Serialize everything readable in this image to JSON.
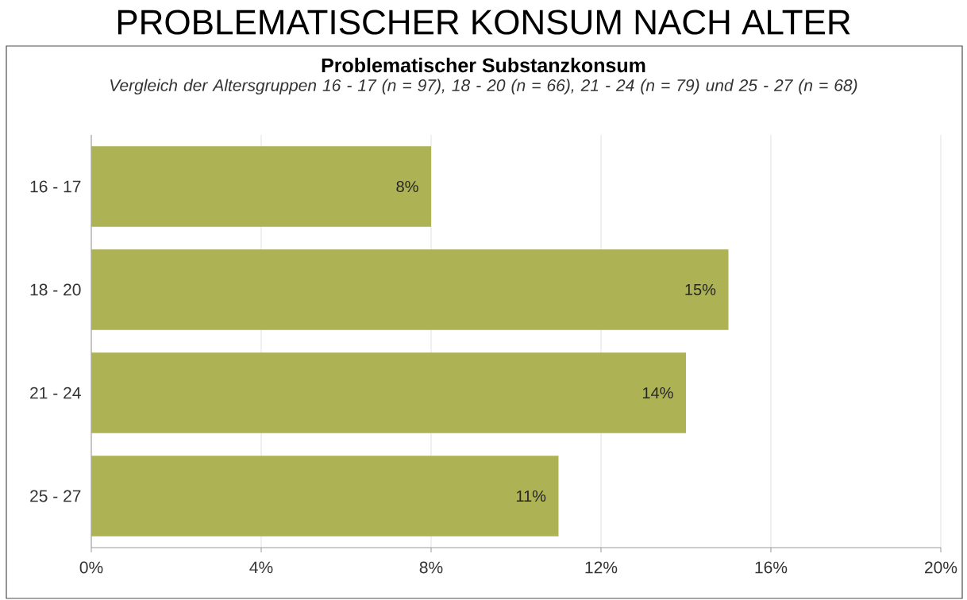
{
  "chart_data": {
    "type": "bar",
    "orientation": "horizontal",
    "title": "PROBLEMATISCHER KONSUM NACH ALTER",
    "subtitle": "Problematischer Substanzkonsum",
    "annotations": [
      "Vergleich der Altersgruppen 16 - 17 (n = 97), 18 - 20 (n = 66), 21 - 24 (n = 79) und 25 - 27 (n = 68)"
    ],
    "categories": [
      "16 - 17",
      "18 - 20",
      "21 - 24",
      "25 - 27"
    ],
    "values": [
      8,
      15,
      14,
      11
    ],
    "value_labels": [
      "8%",
      "15%",
      "14%",
      "11%"
    ],
    "color": "#adb255",
    "xlim": [
      0,
      20
    ],
    "xticks": [
      {
        "value": 0,
        "label": "0%"
      },
      {
        "value": 4,
        "label": "4%"
      },
      {
        "value": 8,
        "label": "8%"
      },
      {
        "value": 12,
        "label": "12%"
      },
      {
        "value": 16,
        "label": "16%"
      },
      {
        "value": 20,
        "label": "20%"
      }
    ],
    "grid": "x"
  }
}
